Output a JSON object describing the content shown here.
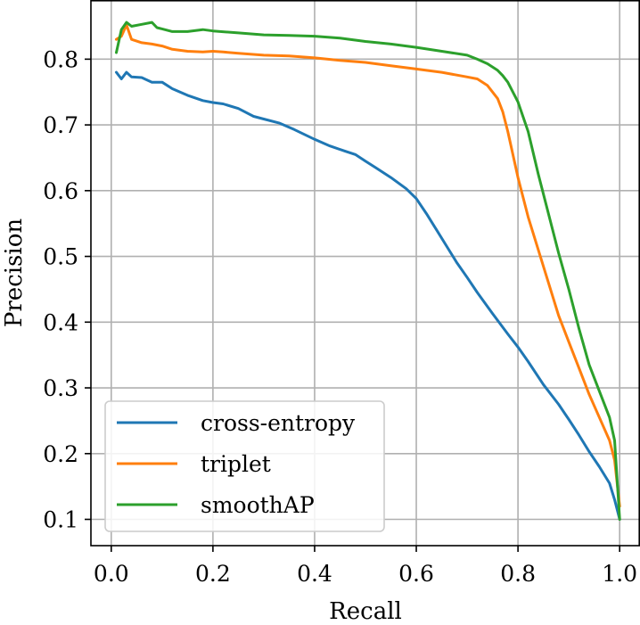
{
  "chart_data": {
    "type": "line",
    "title": "",
    "xlabel": "Recall",
    "ylabel": "Precision",
    "xlim": [
      -0.04,
      1.04
    ],
    "ylim": [
      0.06,
      0.89
    ],
    "xticks": [
      0.0,
      0.2,
      0.4,
      0.6,
      0.8,
      1.0
    ],
    "xtick_labels": [
      "0.0",
      "0.2",
      "0.4",
      "0.6",
      "0.8",
      "1.0"
    ],
    "yticks": [
      0.1,
      0.2,
      0.3,
      0.4,
      0.5,
      0.6,
      0.7,
      0.8
    ],
    "ytick_labels": [
      "0.1",
      "0.2",
      "0.3",
      "0.4",
      "0.5",
      "0.6",
      "0.7",
      "0.8"
    ],
    "grid": true,
    "legend_position": "lower-left",
    "series": [
      {
        "name": "cross-entropy",
        "color": "#1f77b4",
        "x": [
          0.01,
          0.02,
          0.03,
          0.04,
          0.06,
          0.08,
          0.1,
          0.12,
          0.15,
          0.18,
          0.2,
          0.22,
          0.25,
          0.28,
          0.3,
          0.33,
          0.36,
          0.4,
          0.43,
          0.46,
          0.48,
          0.5,
          0.52,
          0.55,
          0.58,
          0.6,
          0.62,
          0.64,
          0.66,
          0.68,
          0.7,
          0.72,
          0.75,
          0.78,
          0.8,
          0.82,
          0.85,
          0.88,
          0.9,
          0.92,
          0.94,
          0.96,
          0.98,
          0.99,
          1.0
        ],
        "y": [
          0.78,
          0.77,
          0.78,
          0.773,
          0.772,
          0.765,
          0.765,
          0.755,
          0.745,
          0.737,
          0.734,
          0.732,
          0.725,
          0.713,
          0.709,
          0.703,
          0.693,
          0.678,
          0.668,
          0.66,
          0.655,
          0.645,
          0.635,
          0.62,
          0.603,
          0.588,
          0.565,
          0.54,
          0.515,
          0.49,
          0.468,
          0.445,
          0.413,
          0.382,
          0.362,
          0.34,
          0.305,
          0.275,
          0.252,
          0.228,
          0.203,
          0.18,
          0.155,
          0.13,
          0.1
        ]
      },
      {
        "name": "triplet",
        "color": "#ff7f0e",
        "x": [
          0.01,
          0.02,
          0.03,
          0.04,
          0.06,
          0.08,
          0.1,
          0.12,
          0.15,
          0.18,
          0.2,
          0.22,
          0.25,
          0.3,
          0.35,
          0.4,
          0.45,
          0.5,
          0.55,
          0.6,
          0.65,
          0.7,
          0.72,
          0.74,
          0.76,
          0.77,
          0.78,
          0.8,
          0.82,
          0.84,
          0.86,
          0.88,
          0.9,
          0.92,
          0.94,
          0.96,
          0.98,
          0.99,
          1.0
        ],
        "y": [
          0.83,
          0.835,
          0.852,
          0.83,
          0.825,
          0.823,
          0.82,
          0.815,
          0.812,
          0.811,
          0.812,
          0.811,
          0.809,
          0.806,
          0.805,
          0.802,
          0.798,
          0.795,
          0.79,
          0.785,
          0.78,
          0.773,
          0.77,
          0.76,
          0.74,
          0.72,
          0.69,
          0.62,
          0.56,
          0.51,
          0.46,
          0.41,
          0.37,
          0.33,
          0.29,
          0.255,
          0.22,
          0.19,
          0.12
        ]
      },
      {
        "name": "smoothAP",
        "color": "#2ca02c",
        "x": [
          0.01,
          0.02,
          0.03,
          0.04,
          0.06,
          0.08,
          0.09,
          0.1,
          0.12,
          0.15,
          0.18,
          0.2,
          0.25,
          0.3,
          0.35,
          0.4,
          0.45,
          0.5,
          0.55,
          0.6,
          0.65,
          0.7,
          0.72,
          0.74,
          0.76,
          0.77,
          0.78,
          0.8,
          0.82,
          0.84,
          0.86,
          0.88,
          0.9,
          0.92,
          0.94,
          0.96,
          0.98,
          0.99,
          1.0
        ],
        "y": [
          0.81,
          0.845,
          0.856,
          0.85,
          0.853,
          0.856,
          0.848,
          0.846,
          0.842,
          0.842,
          0.845,
          0.843,
          0.84,
          0.837,
          0.836,
          0.835,
          0.832,
          0.827,
          0.823,
          0.818,
          0.812,
          0.806,
          0.8,
          0.793,
          0.783,
          0.775,
          0.765,
          0.735,
          0.69,
          0.625,
          0.565,
          0.505,
          0.45,
          0.39,
          0.335,
          0.295,
          0.255,
          0.22,
          0.1
        ]
      }
    ]
  }
}
